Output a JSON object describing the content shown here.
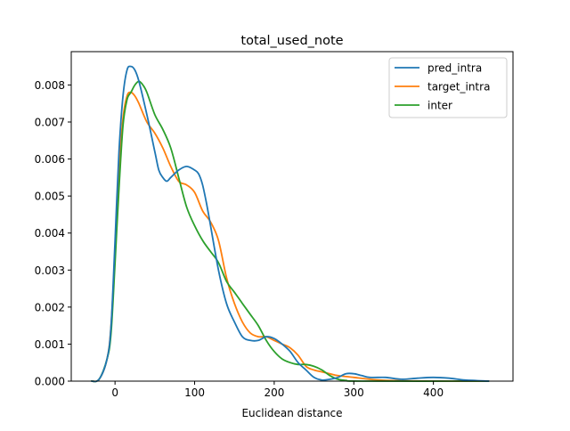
{
  "chart_data": {
    "type": "line",
    "title": "total_used_note",
    "xlabel": "Euclidean distance",
    "ylabel": "",
    "xlim": [
      -55,
      500
    ],
    "ylim": [
      0,
      0.0089
    ],
    "xticks": [
      0,
      100,
      200,
      300,
      400
    ],
    "xtick_labels": [
      "0",
      "100",
      "200",
      "300",
      "400"
    ],
    "yticks": [
      0,
      0.001,
      0.002,
      0.003,
      0.004,
      0.005,
      0.006,
      0.007,
      0.008
    ],
    "ytick_labels": [
      "0.000",
      "0.001",
      "0.002",
      "0.003",
      "0.004",
      "0.005",
      "0.006",
      "0.007",
      "0.008"
    ],
    "grid": false,
    "legend_position": "top-right",
    "series": [
      {
        "name": "pred_intra",
        "color": "#1f77b4",
        "points": [
          [
            -30,
            0
          ],
          [
            -20,
            5e-05
          ],
          [
            -10,
            0.0006
          ],
          [
            -5,
            0.0015
          ],
          [
            0,
            0.0038
          ],
          [
            5,
            0.0062
          ],
          [
            10,
            0.0077
          ],
          [
            15,
            0.0084
          ],
          [
            20,
            0.0085
          ],
          [
            25,
            0.0084
          ],
          [
            30,
            0.0081
          ],
          [
            40,
            0.0072
          ],
          [
            50,
            0.0062
          ],
          [
            55,
            0.0057
          ],
          [
            60,
            0.0055
          ],
          [
            65,
            0.0054
          ],
          [
            70,
            0.0055
          ],
          [
            80,
            0.0057
          ],
          [
            90,
            0.0058
          ],
          [
            100,
            0.0057
          ],
          [
            105,
            0.0056
          ],
          [
            110,
            0.0053
          ],
          [
            115,
            0.0048
          ],
          [
            120,
            0.0042
          ],
          [
            130,
            0.003
          ],
          [
            140,
            0.0021
          ],
          [
            150,
            0.0016
          ],
          [
            160,
            0.0012
          ],
          [
            170,
            0.0011
          ],
          [
            180,
            0.0011
          ],
          [
            190,
            0.0012
          ],
          [
            200,
            0.00115
          ],
          [
            210,
            0.001
          ],
          [
            220,
            0.0008
          ],
          [
            230,
            0.0005
          ],
          [
            240,
            0.0003
          ],
          [
            250,
            0.0001
          ],
          [
            260,
            3e-05
          ],
          [
            270,
            5e-05
          ],
          [
            280,
            0.0001
          ],
          [
            290,
            0.0002
          ],
          [
            300,
            0.0002
          ],
          [
            310,
            0.00015
          ],
          [
            320,
            0.0001
          ],
          [
            340,
            0.0001
          ],
          [
            360,
            5e-05
          ],
          [
            380,
            8e-05
          ],
          [
            400,
            0.0001
          ],
          [
            420,
            8e-05
          ],
          [
            440,
            3e-05
          ],
          [
            470,
            0
          ]
        ]
      },
      {
        "name": "target_intra",
        "color": "#ff7f0e",
        "points": [
          [
            -30,
            0
          ],
          [
            -20,
            5e-05
          ],
          [
            -10,
            0.0006
          ],
          [
            -5,
            0.0015
          ],
          [
            0,
            0.0035
          ],
          [
            5,
            0.0057
          ],
          [
            10,
            0.0071
          ],
          [
            15,
            0.0077
          ],
          [
            20,
            0.0078
          ],
          [
            25,
            0.0077
          ],
          [
            30,
            0.0075
          ],
          [
            40,
            0.007
          ],
          [
            50,
            0.0067
          ],
          [
            60,
            0.0063
          ],
          [
            70,
            0.0058
          ],
          [
            80,
            0.0054
          ],
          [
            90,
            0.0053
          ],
          [
            100,
            0.0051
          ],
          [
            110,
            0.0046
          ],
          [
            120,
            0.0043
          ],
          [
            130,
            0.0038
          ],
          [
            140,
            0.0028
          ],
          [
            150,
            0.0021
          ],
          [
            160,
            0.0016
          ],
          [
            170,
            0.0013
          ],
          [
            180,
            0.0012
          ],
          [
            190,
            0.0012
          ],
          [
            200,
            0.0011
          ],
          [
            210,
            0.001
          ],
          [
            220,
            0.0009
          ],
          [
            230,
            0.0007
          ],
          [
            240,
            0.0004
          ],
          [
            250,
            0.0003
          ],
          [
            260,
            0.00025
          ],
          [
            270,
            0.0002
          ],
          [
            280,
            0.00015
          ],
          [
            300,
            0.0001
          ],
          [
            320,
            5e-05
          ],
          [
            340,
            2e-05
          ],
          [
            360,
            1e-05
          ],
          [
            400,
            0
          ],
          [
            470,
            0
          ]
        ]
      },
      {
        "name": "inter",
        "color": "#2ca02c",
        "points": [
          [
            -30,
            0
          ],
          [
            -20,
            5e-05
          ],
          [
            -10,
            0.0006
          ],
          [
            -5,
            0.0013
          ],
          [
            0,
            0.0032
          ],
          [
            5,
            0.0052
          ],
          [
            10,
            0.0069
          ],
          [
            15,
            0.0076
          ],
          [
            20,
            0.0078
          ],
          [
            25,
            0.008
          ],
          [
            30,
            0.0081
          ],
          [
            35,
            0.008
          ],
          [
            40,
            0.0078
          ],
          [
            50,
            0.0072
          ],
          [
            60,
            0.0068
          ],
          [
            70,
            0.0063
          ],
          [
            80,
            0.0055
          ],
          [
            90,
            0.0047
          ],
          [
            100,
            0.0042
          ],
          [
            110,
            0.0038
          ],
          [
            120,
            0.0035
          ],
          [
            130,
            0.0032
          ],
          [
            140,
            0.0027
          ],
          [
            150,
            0.0024
          ],
          [
            160,
            0.0021
          ],
          [
            170,
            0.0018
          ],
          [
            180,
            0.0015
          ],
          [
            190,
            0.0011
          ],
          [
            200,
            0.0008
          ],
          [
            210,
            0.0006
          ],
          [
            220,
            0.0005
          ],
          [
            230,
            0.00045
          ],
          [
            240,
            0.00045
          ],
          [
            250,
            0.0004
          ],
          [
            260,
            0.0003
          ],
          [
            270,
            0.00015
          ],
          [
            280,
            5e-05
          ],
          [
            290,
            2e-05
          ],
          [
            310,
            0
          ],
          [
            470,
            0
          ]
        ]
      }
    ]
  }
}
